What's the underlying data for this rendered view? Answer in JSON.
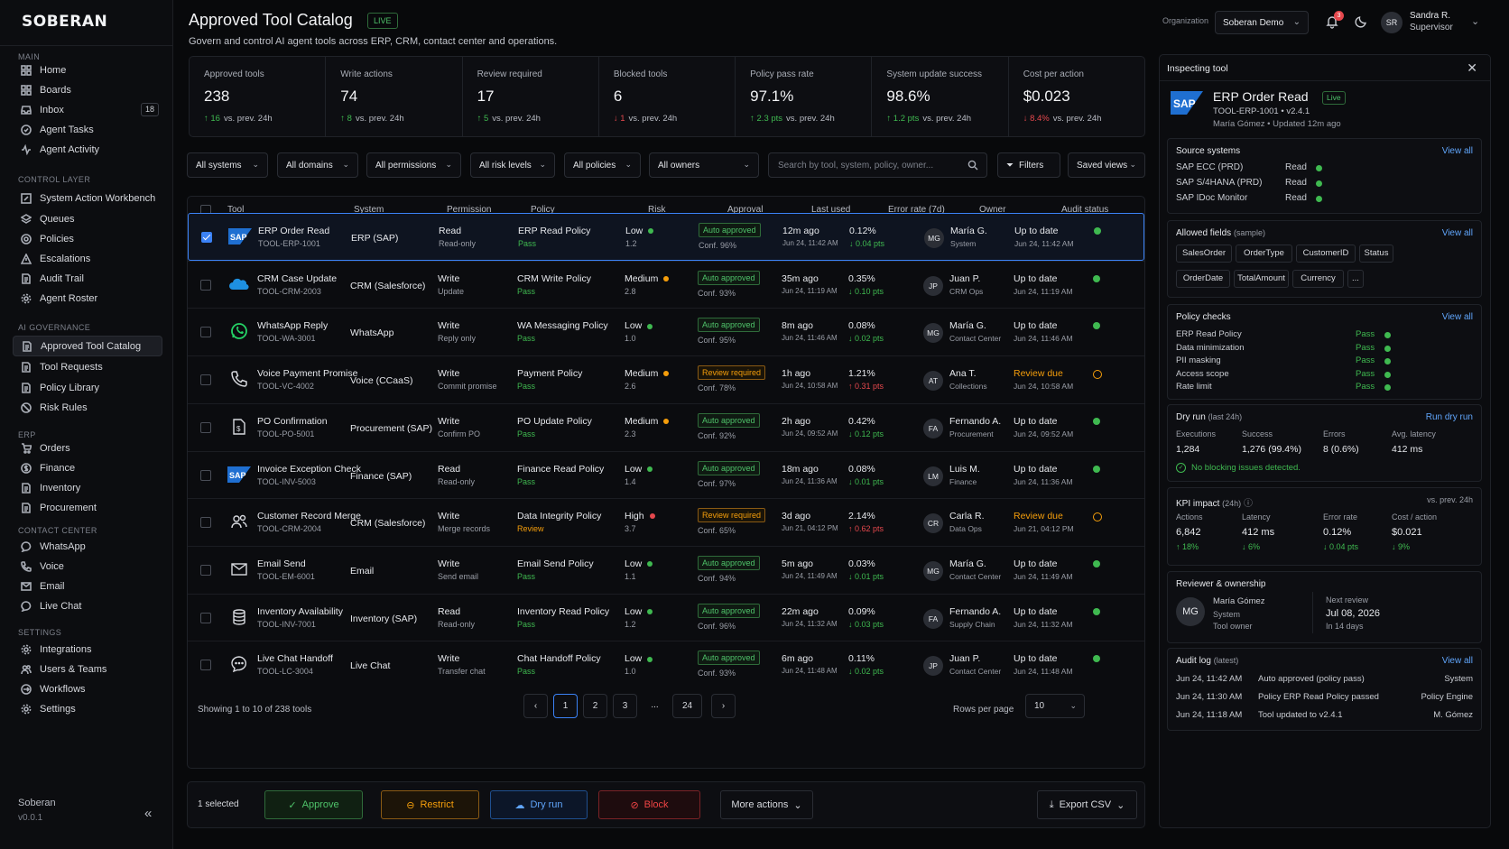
{
  "app": {
    "logo": "SOBERAN",
    "version": "v0.0.1",
    "footer_name": "Soberan"
  },
  "sidebar": {
    "sections": {
      "main": "MAIN",
      "control": "CONTROL LAYER",
      "ai": "AI GOVERNANCE",
      "erp": "ERP",
      "contact": "CONTACT CENTER",
      "settings": "SETTINGS"
    },
    "items": [
      {
        "label": "Home",
        "icon": "grid-icon"
      },
      {
        "label": "Boards",
        "icon": "grid-icon"
      },
      {
        "label": "Inbox",
        "icon": "inbox-icon",
        "badge": "18"
      },
      {
        "label": "Agent Tasks",
        "icon": "tasks-icon"
      },
      {
        "label": "Agent Activity",
        "icon": "activity-icon"
      },
      {
        "label": "System Action Workbench",
        "icon": "edit-icon"
      },
      {
        "label": "Queues",
        "icon": "layers-icon"
      },
      {
        "label": "Policies",
        "icon": "target-icon"
      },
      {
        "label": "Escalations",
        "icon": "alert-icon"
      },
      {
        "label": "Audit Trail",
        "icon": "doc-icon"
      },
      {
        "label": "Agent Roster",
        "icon": "gear-icon"
      },
      {
        "label": "Approved Tool Catalog",
        "icon": "doc-icon"
      },
      {
        "label": "Tool Requests",
        "icon": "doc-icon"
      },
      {
        "label": "Policy Library",
        "icon": "doc-icon"
      },
      {
        "label": "Risk Rules",
        "icon": "block-icon"
      },
      {
        "label": "Orders",
        "icon": "cart-icon"
      },
      {
        "label": "Finance",
        "icon": "dollar-icon"
      },
      {
        "label": "Inventory",
        "icon": "doc-icon"
      },
      {
        "label": "Procurement",
        "icon": "doc-icon"
      },
      {
        "label": "WhatsApp",
        "icon": "chat-icon"
      },
      {
        "label": "Voice",
        "icon": "phone-icon"
      },
      {
        "label": "Email",
        "icon": "mail-icon"
      },
      {
        "label": "Live Chat",
        "icon": "chat-icon"
      },
      {
        "label": "Integrations",
        "icon": "gear-icon"
      },
      {
        "label": "Users & Teams",
        "icon": "users-icon"
      },
      {
        "label": "Workflows",
        "icon": "flow-icon"
      },
      {
        "label": "Settings",
        "icon": "gear-icon"
      }
    ]
  },
  "header": {
    "title": "Approved Tool Catalog",
    "live": "LIVE",
    "subtitle": "Govern and control AI agent tools across ERP, CRM, contact center and operations.",
    "org_label": "Organization",
    "org_value": "Soberan Demo",
    "notif_count": "3",
    "user_initials": "SR",
    "user_name": "Sandra R.",
    "user_role": "Supervisor"
  },
  "kpis": [
    {
      "label": "Approved tools",
      "value": "238",
      "delta": "16",
      "suffix": "vs. prev. 24h",
      "dir": "up"
    },
    {
      "label": "Write actions",
      "value": "74",
      "delta": "8",
      "suffix": "vs. prev. 24h",
      "dir": "up"
    },
    {
      "label": "Review required",
      "value": "17",
      "delta": "5",
      "suffix": "vs. prev. 24h",
      "dir": "up"
    },
    {
      "label": "Blocked tools",
      "value": "6",
      "delta": "1",
      "suffix": "vs. prev. 24h",
      "dir": "down"
    },
    {
      "label": "Policy pass rate",
      "value": "97.1%",
      "delta": "2.3 pts",
      "suffix": "vs. prev. 24h",
      "dir": "up"
    },
    {
      "label": "System update success",
      "value": "98.6%",
      "delta": "1.2 pts",
      "suffix": "vs. prev. 24h",
      "dir": "up"
    },
    {
      "label": "Cost per action",
      "value": "$0.023",
      "delta": "8.4%",
      "suffix": "vs. prev. 24h",
      "dir": "down"
    }
  ],
  "filters": {
    "systems": "All systems",
    "domains": "All domains",
    "permissions": "All permissions",
    "risk": "All risk levels",
    "policies": "All policies",
    "owners": "All owners",
    "search_placeholder": "Search by tool, system, policy, owner...",
    "filters_btn": "Filters",
    "saved_views": "Saved views"
  },
  "table": {
    "columns": [
      "Tool",
      "System",
      "Permission",
      "Policy",
      "Risk",
      "Approval",
      "Last used",
      "Error rate (7d)",
      "Owner",
      "Audit status"
    ],
    "rows": [
      {
        "name": "ERP Order Read",
        "id": "TOOL-ERP-1001",
        "icon": "sap-logo",
        "system": "ERP (SAP)",
        "perm": "Read",
        "perm_sub": "Read-only",
        "policy": "ERP Read Policy",
        "policy_status": "Pass",
        "risk": "Low",
        "risk_score": "1.2",
        "approval": "Auto approved",
        "conf": "Conf. 96%",
        "last": "12m ago",
        "last_ts": "Jun 24, 11:42 AM",
        "err": "0.12%",
        "err_delta": "0.04 pts",
        "err_dir": "down",
        "owner_initials": "MG",
        "owner": "María G.",
        "owner_team": "System",
        "audit": "Up to date",
        "audit_ts": "Jun 24, 11:42 AM",
        "selected": true
      },
      {
        "name": "CRM Case Update",
        "id": "TOOL-CRM-2003",
        "icon": "cloud-icon",
        "system": "CRM (Salesforce)",
        "perm": "Write",
        "perm_sub": "Update",
        "policy": "CRM Write Policy",
        "policy_status": "Pass",
        "risk": "Medium",
        "risk_score": "2.8",
        "approval": "Auto approved",
        "conf": "Conf. 93%",
        "last": "35m ago",
        "last_ts": "Jun 24, 11:19 AM",
        "err": "0.35%",
        "err_delta": "0.10 pts",
        "err_dir": "down",
        "owner_initials": "JP",
        "owner": "Juan P.",
        "owner_team": "CRM Ops",
        "audit": "Up to date",
        "audit_ts": "Jun 24, 11:19 AM"
      },
      {
        "name": "WhatsApp Reply",
        "id": "TOOL-WA-3001",
        "icon": "whatsapp-icon",
        "system": "WhatsApp",
        "perm": "Write",
        "perm_sub": "Reply only",
        "policy": "WA Messaging Policy",
        "policy_status": "Pass",
        "risk": "Low",
        "risk_score": "1.0",
        "approval": "Auto approved",
        "conf": "Conf. 95%",
        "last": "8m ago",
        "last_ts": "Jun 24, 11:46 AM",
        "err": "0.08%",
        "err_delta": "0.02 pts",
        "err_dir": "down",
        "owner_initials": "MG",
        "owner": "María G.",
        "owner_team": "Contact Center",
        "audit": "Up to date",
        "audit_ts": "Jun 24, 11:46 AM"
      },
      {
        "name": "Voice Payment Promise",
        "id": "TOOL-VC-4002",
        "icon": "phone-icon",
        "system": "Voice (CCaaS)",
        "perm": "Write",
        "perm_sub": "Commit promise",
        "policy": "Payment Policy",
        "policy_status": "Pass",
        "risk": "Medium",
        "risk_score": "2.6",
        "approval": "Review required",
        "conf": "Conf. 78%",
        "last": "1h ago",
        "last_ts": "Jun 24, 10:58 AM",
        "err": "1.21%",
        "err_delta": "0.31 pts",
        "err_dir": "up-bad",
        "owner_initials": "AT",
        "owner": "Ana T.",
        "owner_team": "Collections",
        "audit": "Review due",
        "audit_ts": "Jun 24, 10:58 AM"
      },
      {
        "name": "PO Confirmation",
        "id": "TOOL-PO-5001",
        "icon": "doc-dollar-icon",
        "system": "Procurement (SAP)",
        "perm": "Write",
        "perm_sub": "Confirm PO",
        "policy": "PO Update Policy",
        "policy_status": "Pass",
        "risk": "Medium",
        "risk_score": "2.3",
        "approval": "Auto approved",
        "conf": "Conf. 92%",
        "last": "2h ago",
        "last_ts": "Jun 24, 09:52 AM",
        "err": "0.42%",
        "err_delta": "0.12 pts",
        "err_dir": "down",
        "owner_initials": "FA",
        "owner": "Fernando A.",
        "owner_team": "Procurement",
        "audit": "Up to date",
        "audit_ts": "Jun 24, 09:52 AM"
      },
      {
        "name": "Invoice Exception Check",
        "id": "TOOL-INV-5003",
        "icon": "sap-logo",
        "system": "Finance (SAP)",
        "perm": "Read",
        "perm_sub": "Read-only",
        "policy": "Finance Read Policy",
        "policy_status": "Pass",
        "risk": "Low",
        "risk_score": "1.4",
        "approval": "Auto approved",
        "conf": "Conf. 97%",
        "last": "18m ago",
        "last_ts": "Jun 24, 11:36 AM",
        "err": "0.08%",
        "err_delta": "0.01 pts",
        "err_dir": "down",
        "owner_initials": "LM",
        "owner": "Luis M.",
        "owner_team": "Finance",
        "audit": "Up to date",
        "audit_ts": "Jun 24, 11:36 AM"
      },
      {
        "name": "Customer Record Merge",
        "id": "TOOL-CRM-2004",
        "icon": "users-icon",
        "system": "CRM (Salesforce)",
        "perm": "Write",
        "perm_sub": "Merge records",
        "policy": "Data Integrity Policy",
        "policy_status": "Review",
        "risk": "High",
        "risk_score": "3.7",
        "approval": "Review required",
        "conf": "Conf. 65%",
        "last": "3d ago",
        "last_ts": "Jun 21, 04:12 PM",
        "err": "2.14%",
        "err_delta": "0.62 pts",
        "err_dir": "up-bad",
        "owner_initials": "CR",
        "owner": "Carla R.",
        "owner_team": "Data Ops",
        "audit": "Review due",
        "audit_ts": "Jun 21, 04:12 PM"
      },
      {
        "name": "Email Send",
        "id": "TOOL-EM-6001",
        "icon": "mail-icon",
        "system": "Email",
        "perm": "Write",
        "perm_sub": "Send email",
        "policy": "Email Send Policy",
        "policy_status": "Pass",
        "risk": "Low",
        "risk_score": "1.1",
        "approval": "Auto approved",
        "conf": "Conf. 94%",
        "last": "5m ago",
        "last_ts": "Jun 24, 11:49 AM",
        "err": "0.03%",
        "err_delta": "0.01 pts",
        "err_dir": "down",
        "owner_initials": "MG",
        "owner": "María G.",
        "owner_team": "Contact Center",
        "audit": "Up to date",
        "audit_ts": "Jun 24, 11:49 AM"
      },
      {
        "name": "Inventory Availability",
        "id": "TOOL-INV-7001",
        "icon": "database-icon",
        "system": "Inventory (SAP)",
        "perm": "Read",
        "perm_sub": "Read-only",
        "policy": "Inventory Read Policy",
        "policy_status": "Pass",
        "risk": "Low",
        "risk_score": "1.2",
        "approval": "Auto approved",
        "conf": "Conf. 96%",
        "last": "22m ago",
        "last_ts": "Jun 24, 11:32 AM",
        "err": "0.09%",
        "err_delta": "0.03 pts",
        "err_dir": "down",
        "owner_initials": "FA",
        "owner": "Fernando A.",
        "owner_team": "Supply Chain",
        "audit": "Up to date",
        "audit_ts": "Jun 24, 11:32 AM"
      },
      {
        "name": "Live Chat Handoff",
        "id": "TOOL-LC-3004",
        "icon": "chat-icon",
        "system": "Live Chat",
        "perm": "Write",
        "perm_sub": "Transfer chat",
        "policy": "Chat Handoff Policy",
        "policy_status": "Pass",
        "risk": "Low",
        "risk_score": "1.0",
        "approval": "Auto approved",
        "conf": "Conf. 93%",
        "last": "6m ago",
        "last_ts": "Jun 24, 11:48 AM",
        "err": "0.11%",
        "err_delta": "0.02 pts",
        "err_dir": "down",
        "owner_initials": "JP",
        "owner": "Juan P.",
        "owner_team": "Contact Center",
        "audit": "Up to date",
        "audit_ts": "Jun 24, 11:48 AM"
      }
    ],
    "showing": "Showing 1 to 10 of 238 tools",
    "pages": [
      "1",
      "2",
      "3",
      "...",
      "24"
    ],
    "rows_per_page_label": "Rows per page",
    "rows_per_page": "10"
  },
  "actionbar": {
    "selected": "1 selected",
    "approve": "Approve",
    "restrict": "Restrict",
    "dry_run": "Dry run",
    "block": "Block",
    "more": "More actions",
    "export": "Export CSV"
  },
  "inspector": {
    "title": "Inspecting tool",
    "tool_name": "ERP Order Read",
    "live": "Live",
    "tool_id": "TOOL-ERP-1001",
    "tool_version": "v2.4.1",
    "owner_line": "María Gómez",
    "updated": "Updated 12m ago",
    "source": {
      "title": "Source systems",
      "link": "View all",
      "items": [
        {
          "name": "SAP ECC (PRD)",
          "perm": "Read"
        },
        {
          "name": "SAP S/4HANA (PRD)",
          "perm": "Read"
        },
        {
          "name": "SAP IDoc Monitor",
          "perm": "Read"
        }
      ]
    },
    "fields": {
      "title": "Allowed fields",
      "muted": "(sample)",
      "link": "View all",
      "chips": [
        "SalesOrder",
        "OrderType",
        "CustomerID",
        "Status",
        "OrderDate",
        "TotalAmount",
        "Currency",
        "..."
      ]
    },
    "policy": {
      "title": "Policy checks",
      "link": "View all",
      "items": [
        {
          "name": "ERP Read Policy",
          "status": "Pass"
        },
        {
          "name": "Data minimization",
          "status": "Pass"
        },
        {
          "name": "PII masking",
          "status": "Pass"
        },
        {
          "name": "Access scope",
          "status": "Pass"
        },
        {
          "name": "Rate limit",
          "status": "Pass"
        }
      ]
    },
    "dryrun": {
      "title": "Dry run",
      "muted": "(last 24h)",
      "link": "Run dry run",
      "cols": [
        {
          "label": "Executions",
          "value": "1,284"
        },
        {
          "label": "Success",
          "value": "1,276 (99.4%)"
        },
        {
          "label": "Errors",
          "value": "8 (0.6%)"
        },
        {
          "label": "Avg. latency",
          "value": "412 ms"
        }
      ],
      "note": "No blocking issues detected."
    },
    "kpi": {
      "title": "KPI impact",
      "muted": "(24h)",
      "right": "vs. prev. 24h",
      "cols": [
        {
          "label": "Actions",
          "value": "6,842",
          "delta": "18%",
          "dir": "up"
        },
        {
          "label": "Latency",
          "value": "412 ms",
          "delta": "6%",
          "dir": "down"
        },
        {
          "label": "Error rate",
          "value": "0.12%",
          "delta": "0.04 pts",
          "dir": "down"
        },
        {
          "label": "Cost / action",
          "value": "$0.021",
          "delta": "9%",
          "dir": "down"
        }
      ]
    },
    "reviewer": {
      "title": "Reviewer & ownership",
      "initials": "MG",
      "name": "María Gómez",
      "team": "System",
      "role": "Tool owner",
      "next_label": "Next review",
      "next_date": "Jul 08, 2026",
      "next_in": "In 14 days"
    },
    "audit": {
      "title": "Audit log",
      "muted": "(latest)",
      "link": "View all",
      "items": [
        {
          "ts": "Jun 24, 11:42 AM",
          "event": "Auto approved (policy pass)",
          "actor": "System"
        },
        {
          "ts": "Jun 24, 11:30 AM",
          "event": "Policy ERP Read Policy passed",
          "actor": "Policy Engine"
        },
        {
          "ts": "Jun 24, 11:18 AM",
          "event": "Tool updated to v2.4.1",
          "actor": "M. Gómez"
        }
      ]
    }
  },
  "colors": {
    "accent": "#3b82f6",
    "success": "#3fb950",
    "warning": "#f59e0b",
    "danger": "#e5484d",
    "background": "#08090b"
  }
}
